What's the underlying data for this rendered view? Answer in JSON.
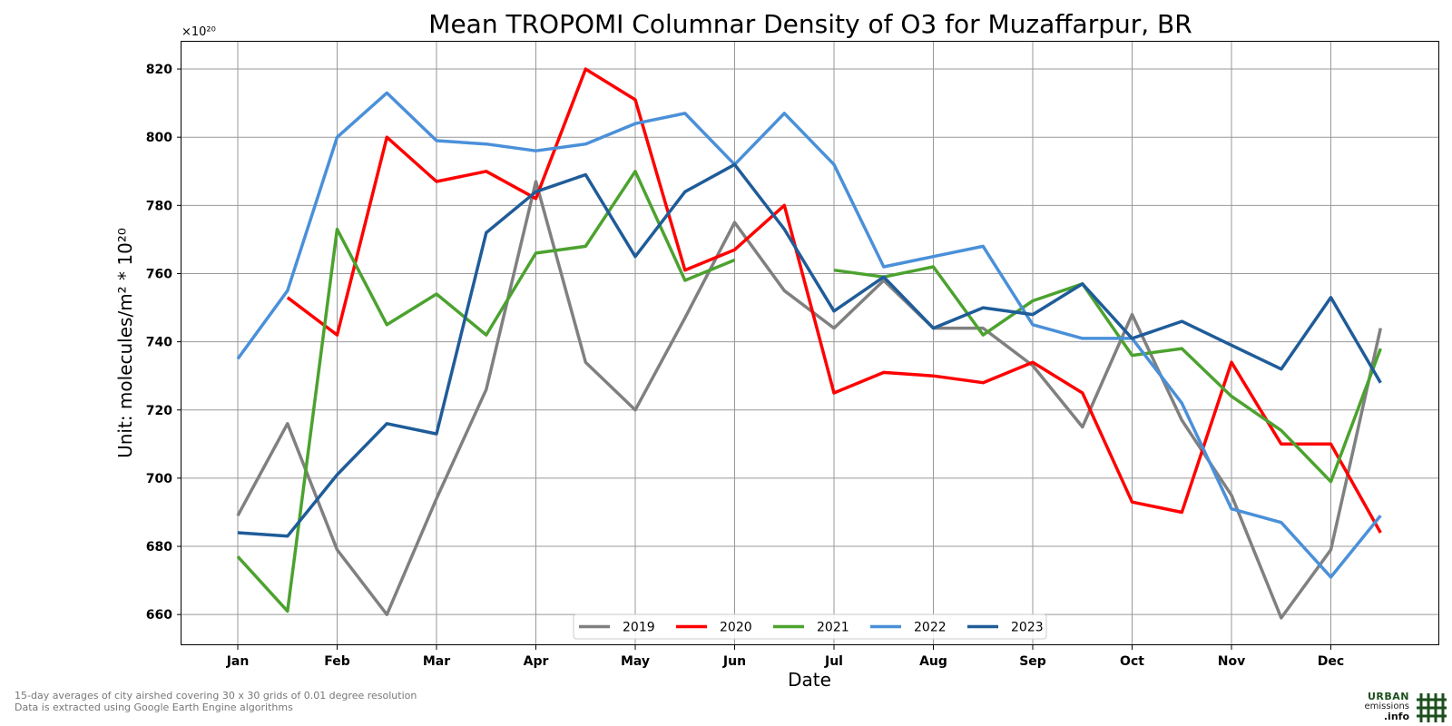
{
  "chart_data": {
    "type": "line",
    "title": "Mean TROPOMI Columnar Density of O3 for Muzaffarpur, BR",
    "xlabel": "Date",
    "ylabel": "Unit: molecules/m² * 10²⁰",
    "y_multiplier": "×10²⁰",
    "ylim": [
      651,
      828
    ],
    "y_ticks": [
      660,
      680,
      700,
      720,
      740,
      760,
      780,
      800,
      820
    ],
    "x_ticks": [
      "Jan",
      "Feb",
      "Mar",
      "Apr",
      "May",
      "Jun",
      "Jul",
      "Aug",
      "Sep",
      "Oct",
      "Nov",
      "Dec"
    ],
    "grid": true,
    "legend_position": "bottom-center",
    "series": [
      {
        "name": "2019",
        "color": "#808080",
        "values": [
          689,
          716,
          679,
          660,
          694,
          726,
          787,
          734,
          720,
          747,
          775,
          755,
          744,
          758,
          744,
          744,
          733,
          715,
          748,
          717,
          695,
          659,
          679,
          744
        ]
      },
      {
        "name": "2020",
        "color": "#ff0000",
        "values": [
          null,
          753,
          742,
          800,
          787,
          790,
          782,
          820,
          811,
          761,
          767,
          780,
          725,
          731,
          730,
          728,
          734,
          725,
          693,
          690,
          734,
          710,
          710,
          684
        ]
      },
      {
        "name": "2021",
        "color": "#4ca22f",
        "values": [
          677,
          661,
          773,
          745,
          754,
          742,
          766,
          768,
          790,
          758,
          764,
          null,
          761,
          759,
          762,
          742,
          752,
          757,
          736,
          738,
          724,
          714,
          699,
          738
        ]
      },
      {
        "name": "2022",
        "color": "#4a90d9",
        "values": [
          735,
          755,
          800,
          813,
          799,
          798,
          796,
          798,
          804,
          807,
          792,
          807,
          792,
          762,
          765,
          768,
          745,
          741,
          741,
          722,
          691,
          687,
          671,
          689
        ]
      },
      {
        "name": "2023",
        "color": "#1f5c99",
        "values": [
          684,
          683,
          701,
          716,
          713,
          772,
          784,
          789,
          765,
          784,
          792,
          773,
          749,
          759,
          744,
          750,
          748,
          757,
          741,
          746,
          739,
          732,
          753,
          728
        ]
      }
    ]
  },
  "footer": {
    "line1": "15-day averages of city airshed covering 30 x 30 grids of 0.01 degree resolution",
    "line2": "Data is extracted using Google Earth Engine algorithms"
  },
  "logo": {
    "line1": "URBAN",
    "line2": "emissions",
    "line3": ".info"
  }
}
